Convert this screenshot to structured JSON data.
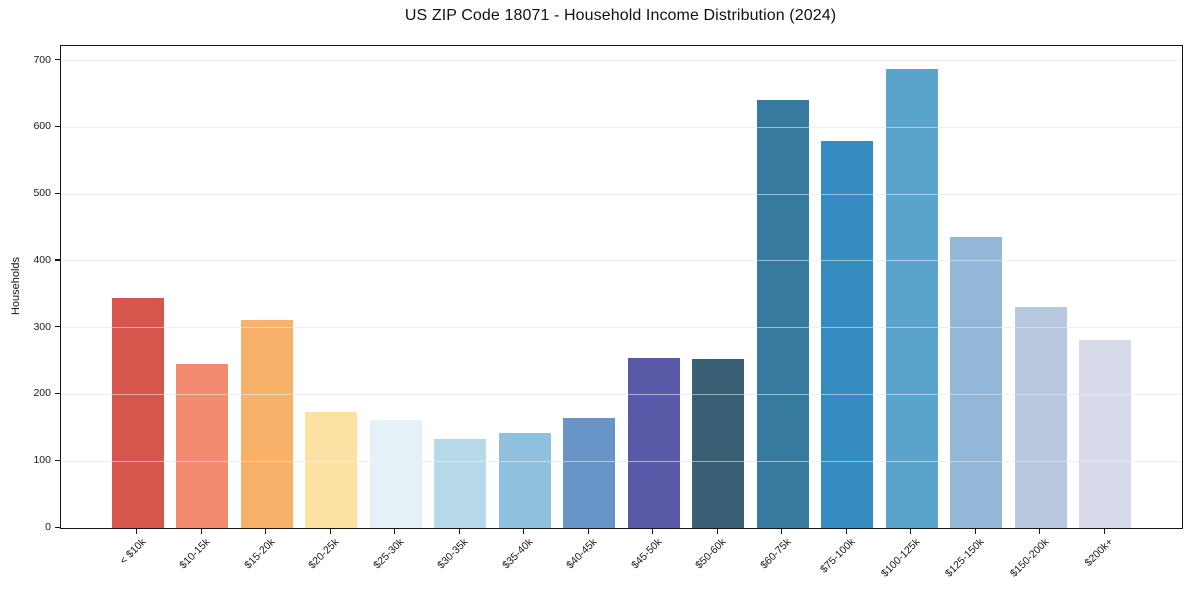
{
  "figure": {
    "background": "#ffffff"
  },
  "chart_data": {
    "type": "bar",
    "title": "US ZIP Code 18071 - Household Income Distribution (2024)",
    "xlabel": "",
    "ylabel": "Households",
    "categories": [
      "< $10k",
      "$10-15k",
      "$15-20k",
      "$20-25k",
      "$25-30k",
      "$30-35k",
      "$35-40k",
      "$40-45k",
      "$45-50k",
      "$50-60k",
      "$60-75k",
      "$75-100k",
      "$100-125k",
      "$125-150k",
      "$150-200k",
      "$200k+"
    ],
    "values": [
      344,
      245,
      311,
      174,
      162,
      134,
      142,
      165,
      254,
      253,
      641,
      580,
      688,
      436,
      331,
      282
    ],
    "bar_colors": [
      "#d6564e",
      "#f38b6e",
      "#f8b169",
      "#fce2a2",
      "#e4f1f6",
      "#b6d9e9",
      "#90c1de",
      "#6994c7",
      "#5959a7",
      "#385f73",
      "#377aa0",
      "#348cc0",
      "#5aa3cb",
      "#93b7d7",
      "#b7c8df",
      "#d7dae8"
    ],
    "yticks": [
      0,
      100,
      200,
      300,
      400,
      500,
      600,
      700
    ],
    "ylim": [
      0,
      722
    ],
    "xlim": [
      -1.19,
      16.19
    ],
    "bar_width_fraction": 0.8,
    "grid": "horizontal-only",
    "gridline_color": "#e9eded",
    "spine_color": "#161616",
    "tick_label_color": "#1a1a1a",
    "x_tick_rotation_deg": 45,
    "legend": "none"
  }
}
